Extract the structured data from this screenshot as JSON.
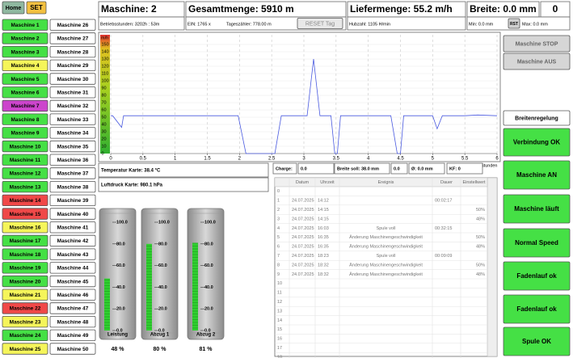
{
  "nav": {
    "home": "Home",
    "set": "SET"
  },
  "machines": [
    {
      "label": "Maschine 1",
      "color": "#45e045"
    },
    {
      "label": "Maschine 2",
      "color": "#45e045"
    },
    {
      "label": "Maschine 3",
      "color": "#45e045"
    },
    {
      "label": "Maschine 4",
      "color": "#f5f55a"
    },
    {
      "label": "Maschine 5",
      "color": "#45e045"
    },
    {
      "label": "Maschine 6",
      "color": "#45e045"
    },
    {
      "label": "Maschine 7",
      "color": "#cc44cc"
    },
    {
      "label": "Maschine 8",
      "color": "#45e045"
    },
    {
      "label": "Maschine 9",
      "color": "#45e045"
    },
    {
      "label": "Maschine 10",
      "color": "#45e045"
    },
    {
      "label": "Maschine 11",
      "color": "#45e045"
    },
    {
      "label": "Maschine 12",
      "color": "#45e045"
    },
    {
      "label": "Maschine 13",
      "color": "#45e045"
    },
    {
      "label": "Maschine 14",
      "color": "#f04848"
    },
    {
      "label": "Maschine 15",
      "color": "#f04848"
    },
    {
      "label": "Maschine 16",
      "color": "#f5f55a"
    },
    {
      "label": "Maschine 17",
      "color": "#45e045"
    },
    {
      "label": "Maschine 18",
      "color": "#45e045"
    },
    {
      "label": "Maschine 19",
      "color": "#45e045"
    },
    {
      "label": "Maschine 20",
      "color": "#45e045"
    },
    {
      "label": "Maschine 21",
      "color": "#f5f55a"
    },
    {
      "label": "Maschine 22",
      "color": "#f04848"
    },
    {
      "label": "Maschine 23",
      "color": "#f5f55a"
    },
    {
      "label": "Maschine 24",
      "color": "#45e045"
    },
    {
      "label": "Maschine 25",
      "color": "#f5f55a"
    },
    {
      "label": "Maschine 26",
      "color": "#ffffff"
    },
    {
      "label": "Maschine 27",
      "color": "#ffffff"
    },
    {
      "label": "Maschine 28",
      "color": "#ffffff"
    },
    {
      "label": "Maschine 29",
      "color": "#ffffff"
    },
    {
      "label": "Maschine 30",
      "color": "#ffffff"
    },
    {
      "label": "Maschine 31",
      "color": "#ffffff"
    },
    {
      "label": "Maschine 32",
      "color": "#ffffff"
    },
    {
      "label": "Maschine 33",
      "color": "#ffffff"
    },
    {
      "label": "Maschine 34",
      "color": "#ffffff"
    },
    {
      "label": "Maschine 35",
      "color": "#ffffff"
    },
    {
      "label": "Maschine 36",
      "color": "#ffffff"
    },
    {
      "label": "Maschine 37",
      "color": "#ffffff"
    },
    {
      "label": "Maschine 38",
      "color": "#ffffff"
    },
    {
      "label": "Maschine 39",
      "color": "#ffffff"
    },
    {
      "label": "Maschine 40",
      "color": "#ffffff"
    },
    {
      "label": "Maschine 41",
      "color": "#ffffff"
    },
    {
      "label": "Maschine 42",
      "color": "#ffffff"
    },
    {
      "label": "Maschine 43",
      "color": "#ffffff"
    },
    {
      "label": "Maschine 44",
      "color": "#ffffff"
    },
    {
      "label": "Maschine 45",
      "color": "#ffffff"
    },
    {
      "label": "Maschine 46",
      "color": "#ffffff"
    },
    {
      "label": "Maschine 47",
      "color": "#ffffff"
    },
    {
      "label": "Maschine 48",
      "color": "#ffffff"
    },
    {
      "label": "Maschine 49",
      "color": "#ffffff"
    },
    {
      "label": "Maschine 50",
      "color": "#ffffff"
    }
  ],
  "header": {
    "maschine": "Maschine: 2",
    "gesamtmenge": "Gesamtmenge: 5910 m",
    "liefermenge": "Liefermenge: 55.2 m/h",
    "breite": "Breite: 0.0 mm",
    "counter": "0",
    "betriebsstunden": "Betriebsstunden: 3202h : 53m",
    "ein": "EIN: 1765 x",
    "tageszaehler": "Tageszähler: 778.00 m",
    "reset": "RESET Tag",
    "hubzahl": "Hubzahl: 1105 H/min",
    "min": "Min: 0.0 mm",
    "rst": "RST",
    "max": "Max: 0.0 mm"
  },
  "chart_data": {
    "type": "line",
    "y_label": "m/h",
    "x_label": "Stunden",
    "x": [
      0,
      0.03,
      0.17,
      0.2,
      1.98,
      2.1,
      2.55,
      2.65,
      3.05,
      3.15,
      3.25,
      3.42,
      3.48,
      3.52,
      3.57,
      4.35,
      4.45,
      4.5,
      4.55,
      5.0,
      5.07,
      5.15,
      5.5,
      5.7,
      6
    ],
    "series": [
      {
        "color": "#4a5ae0",
        "values": [
          52,
          52,
          36,
          52,
          52,
          0,
          0,
          52,
          52,
          130,
          52,
          52,
          0,
          0,
          52,
          52,
          0,
          0,
          52,
          52,
          34,
          52,
          52,
          53,
          52
        ]
      }
    ],
    "xlim": [
      0,
      6
    ],
    "ylim": [
      0,
      150
    ],
    "xticks": [
      0,
      0.5,
      1,
      1.5,
      2,
      2.5,
      3,
      3.5,
      4,
      4.5,
      5,
      5.5,
      6
    ],
    "yticks": [
      0,
      10,
      20,
      30,
      40,
      50,
      60,
      70,
      80,
      90,
      100,
      110,
      120,
      130,
      140,
      150
    ],
    "grid": true
  },
  "sensors": {
    "temperatur": "Temperatur Karte: 38.4 °C",
    "luftdruck": "Luftdruck Karte: 980.1 hPa"
  },
  "status_row": [
    "Charge:",
    "0.0",
    "Breite soll: 38.0 mm",
    "0.0",
    "Ø: 0.0 mm",
    "KF: 0"
  ],
  "table": {
    "columns": [
      "Datum",
      "Uhrzeit",
      "Ereignis",
      "Dauer",
      "Einstellwert"
    ],
    "rows": [
      [
        0,
        null,
        null,
        null,
        null,
        null
      ],
      [
        1,
        "24.07.2025",
        "14:12",
        null,
        "00:02:17",
        null
      ],
      [
        2,
        "24.07.2025",
        "14:15",
        null,
        null,
        "50%"
      ],
      [
        3,
        "24.07.2025",
        "14:15",
        null,
        null,
        "48%"
      ],
      [
        4,
        "24.07.2025",
        "16:03",
        "Spule voll",
        "00:32:15",
        null
      ],
      [
        5,
        "24.07.2025",
        "16:35",
        "Änderung Maschinengeschwindigkeit",
        null,
        "50%"
      ],
      [
        6,
        "24.07.2025",
        "16:35",
        "Änderung Maschinengeschwindigkeit",
        null,
        "48%"
      ],
      [
        7,
        "24.07.2025",
        "18:23",
        "Spule voll",
        "00:09:09",
        null
      ],
      [
        8,
        "24.07.2025",
        "18:32",
        "Änderung Maschinengeschwindigkeit",
        null,
        "50%"
      ],
      [
        9,
        "24.07.2025",
        "18:32",
        "Änderung Maschinengeschwindigkeit",
        null,
        "48%"
      ],
      [
        10,
        null,
        null,
        null,
        null,
        null
      ],
      [
        11,
        null,
        null,
        null,
        null,
        null
      ],
      [
        12,
        null,
        null,
        null,
        null,
        null
      ],
      [
        13,
        null,
        null,
        null,
        null,
        null
      ],
      [
        14,
        null,
        null,
        null,
        null,
        null
      ],
      [
        15,
        null,
        null,
        null,
        null,
        null
      ],
      [
        16,
        null,
        null,
        null,
        null,
        null
      ],
      [
        17,
        null,
        null,
        null,
        null,
        null
      ],
      [
        18,
        null,
        null,
        null,
        null,
        null
      ]
    ]
  },
  "gauges": {
    "ticks": [
      {
        "value": 100,
        "label": "100.0"
      },
      {
        "value": 80,
        "label": "80.0"
      },
      {
        "value": 60,
        "label": "60.0"
      },
      {
        "value": 40,
        "label": "40.0"
      },
      {
        "value": 20,
        "label": "20.0"
      },
      {
        "value": 0,
        "label": "0.0"
      }
    ],
    "items": [
      {
        "name": "Leistung",
        "value": 48,
        "value_label": "48 %"
      },
      {
        "name": "Abzug 1",
        "value": 80,
        "value_label": "80 %"
      },
      {
        "name": "Abzug 2",
        "value": 81,
        "value_label": "81 %"
      }
    ]
  },
  "right_buttons": [
    {
      "label": "Maschine STOP",
      "color": "#d6d6d6"
    },
    {
      "label": "Maschine AUS",
      "color": "#d6d6d6"
    },
    {
      "label": "Breitenregelung",
      "color": "#ffffff"
    },
    {
      "label": "Verbindung OK",
      "color": "#45e045"
    },
    {
      "label": "Maschine AN",
      "color": "#45e045"
    },
    {
      "label": "Maschine läuft",
      "color": "#45e045"
    },
    {
      "label": "Normal Speed",
      "color": "#45e045"
    },
    {
      "label": "Fadenlauf ok",
      "color": "#45e045"
    },
    {
      "label": "Fadenlauf ok",
      "color": "#45e045"
    },
    {
      "label": "Spule OK",
      "color": "#45e045"
    }
  ]
}
